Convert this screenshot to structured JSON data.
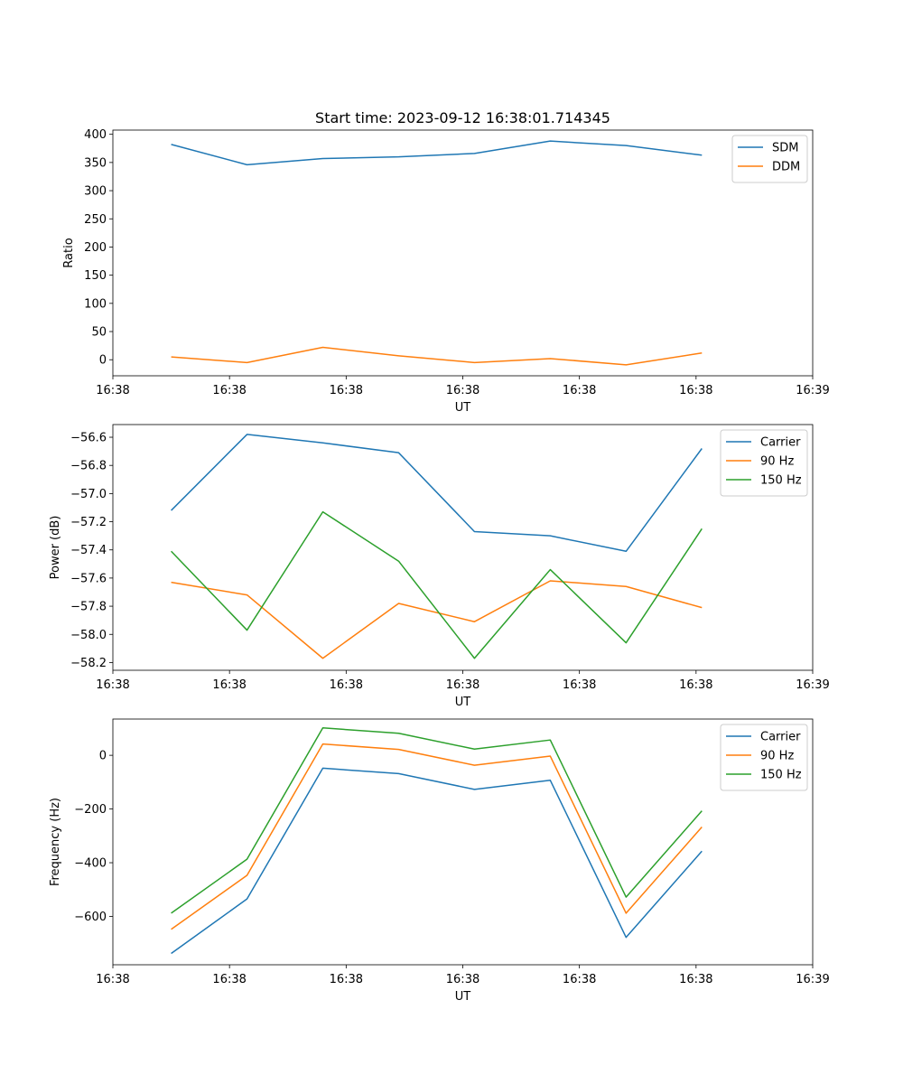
{
  "figure_title": "Start time: 2023-09-12 16:38:01.714345",
  "colors": {
    "c0": "#1f77b4",
    "c1": "#ff7f0e",
    "c2": "#2ca02c"
  },
  "chart_data": [
    {
      "type": "line",
      "title": "Start time: 2023-09-12 16:38:01.714345",
      "xlabel": "UT",
      "ylabel": "Ratio",
      "x": [
        0.5,
        1.15,
        1.8,
        2.45,
        3.1,
        3.75,
        4.4,
        5.05
      ],
      "xlim": [
        0,
        6
      ],
      "xticks": [
        0,
        1,
        2,
        3,
        4,
        5,
        6
      ],
      "xtick_labels": [
        "16:38",
        "16:38",
        "16:38",
        "16:38",
        "16:38",
        "16:38",
        "16:39"
      ],
      "ylim": [
        -28.5,
        407.5
      ],
      "yticks": [
        0,
        50,
        100,
        150,
        200,
        250,
        300,
        350,
        400
      ],
      "ytick_labels": [
        "0",
        "50",
        "100",
        "150",
        "200",
        "250",
        "300",
        "350",
        "400"
      ],
      "legend_position": "top-right",
      "series": [
        {
          "name": "SDM",
          "color": "#1f77b4",
          "values": [
            382,
            346,
            357,
            360,
            366,
            388,
            380,
            363
          ]
        },
        {
          "name": "DDM",
          "color": "#ff7f0e",
          "values": [
            5,
            -5,
            22,
            7,
            -5,
            2,
            -9,
            12
          ]
        }
      ]
    },
    {
      "type": "line",
      "xlabel": "UT",
      "ylabel": "Power (dB)",
      "x": [
        0.5,
        1.15,
        1.8,
        2.45,
        3.1,
        3.75,
        4.4,
        5.05
      ],
      "xlim": [
        0,
        6
      ],
      "xticks": [
        0,
        1,
        2,
        3,
        4,
        5,
        6
      ],
      "xtick_labels": [
        "16:38",
        "16:38",
        "16:38",
        "16:38",
        "16:38",
        "16:38",
        "16:39"
      ],
      "ylim": [
        -58.255,
        -56.51
      ],
      "yticks": [
        -58.2,
        -58.0,
        -57.8,
        -57.6,
        -57.4,
        -57.2,
        -57.0,
        -56.8,
        -56.6
      ],
      "ytick_labels": [
        "−58.2",
        "−58.0",
        "−57.8",
        "−57.6",
        "−57.4",
        "−57.2",
        "−57.0",
        "−56.8",
        "−56.6"
      ],
      "legend_position": "top-right",
      "series": [
        {
          "name": "Carrier",
          "color": "#1f77b4",
          "values": [
            -57.12,
            -56.58,
            -56.64,
            -56.71,
            -57.27,
            -57.3,
            -57.41,
            -56.68
          ]
        },
        {
          "name": "90 Hz",
          "color": "#ff7f0e",
          "values": [
            -57.63,
            -57.72,
            -58.17,
            -57.78,
            -57.91,
            -57.62,
            -57.66,
            -57.81
          ]
        },
        {
          "name": "150 Hz",
          "color": "#2ca02c",
          "values": [
            -57.41,
            -57.97,
            -57.13,
            -57.48,
            -58.17,
            -57.54,
            -58.06,
            -57.25
          ]
        }
      ]
    },
    {
      "type": "line",
      "xlabel": "UT",
      "ylabel": "Frequency (Hz)",
      "x": [
        0.5,
        1.15,
        1.8,
        2.45,
        3.1,
        3.75,
        4.4,
        5.05
      ],
      "xlim": [
        0,
        6
      ],
      "xticks": [
        0,
        1,
        2,
        3,
        4,
        5,
        6
      ],
      "xtick_labels": [
        "16:38",
        "16:38",
        "16:38",
        "16:38",
        "16:38",
        "16:38",
        "16:39"
      ],
      "ylim": [
        -780,
        135
      ],
      "yticks": [
        -600,
        -400,
        -200,
        0
      ],
      "ytick_labels": [
        "−600",
        "−400",
        "−200",
        "0"
      ],
      "legend_position": "top-right",
      "series": [
        {
          "name": "Carrier",
          "color": "#1f77b4",
          "values": [
            -738,
            -535,
            -48,
            -68,
            -127,
            -93,
            -678,
            -357
          ]
        },
        {
          "name": "90 Hz",
          "color": "#ff7f0e",
          "values": [
            -648,
            -447,
            42,
            22,
            -37,
            -3,
            -588,
            -267
          ]
        },
        {
          "name": "150 Hz",
          "color": "#2ca02c",
          "values": [
            -588,
            -387,
            102,
            82,
            23,
            57,
            -528,
            -207
          ]
        }
      ]
    }
  ]
}
